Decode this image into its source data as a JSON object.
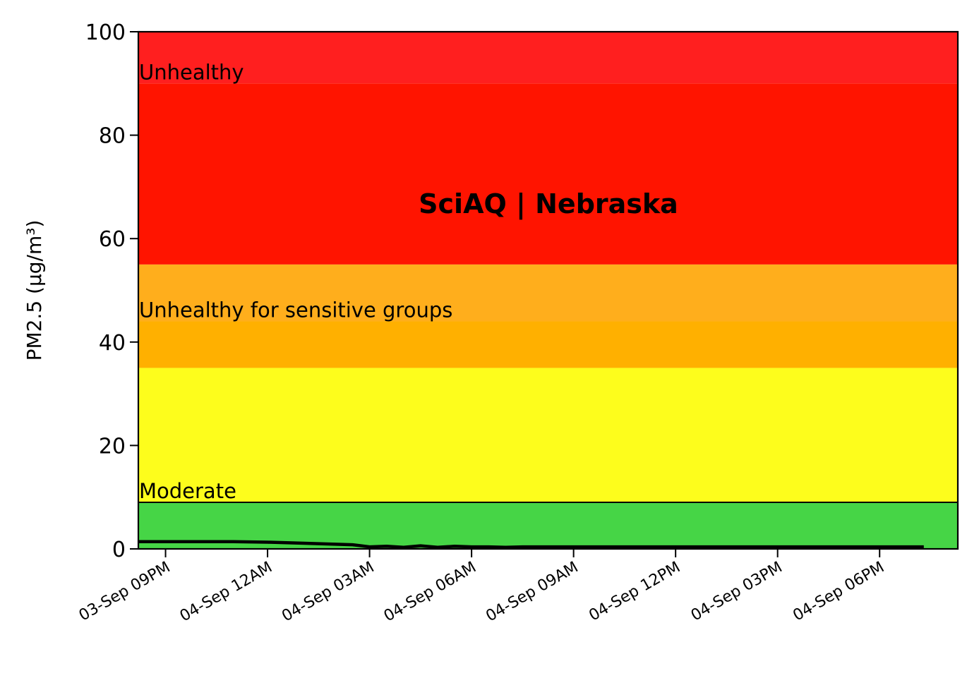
{
  "chart_data": {
    "type": "line",
    "title": "SciAQ | Nebraska",
    "ylabel": "PM2.5 (µg/m³)",
    "xlabel": "",
    "ylim": [
      0,
      100
    ],
    "xlim_hours": [
      -0.8,
      23.3
    ],
    "yticks": [
      {
        "value": 0,
        "label": "0"
      },
      {
        "value": 20,
        "label": "20"
      },
      {
        "value": 40,
        "label": "40"
      },
      {
        "value": 60,
        "label": "60"
      },
      {
        "value": 80,
        "label": "80"
      },
      {
        "value": 100,
        "label": "100"
      }
    ],
    "xticks": [
      {
        "hour": 0,
        "label": "03-Sep 09PM"
      },
      {
        "hour": 3,
        "label": "04-Sep 12AM"
      },
      {
        "hour": 6,
        "label": "04-Sep 03AM"
      },
      {
        "hour": 9,
        "label": "04-Sep 06AM"
      },
      {
        "hour": 12,
        "label": "04-Sep 09AM"
      },
      {
        "hour": 15,
        "label": "04-Sep 12PM"
      },
      {
        "hour": 18,
        "label": "04-Sep 03PM"
      },
      {
        "hour": 21,
        "label": "04-Sep 06PM"
      }
    ],
    "bands": [
      {
        "from": 0,
        "to": 9,
        "color": "#46d546",
        "label": "Moderate"
      },
      {
        "from": 9,
        "to": 35,
        "color": "#fdfd1c",
        "label": ""
      },
      {
        "from": 35,
        "to": 44,
        "color": "#ffb000",
        "label": "Unhealthy for sensitive groups"
      },
      {
        "from": 44,
        "to": 55,
        "color": "#ffae1c",
        "label": ""
      },
      {
        "from": 55,
        "to": 90,
        "color": "#ff1400",
        "label": "Unhealthy"
      },
      {
        "from": 90,
        "to": 100,
        "color": "#ff1f1f",
        "label": ""
      }
    ],
    "threshold_line": 9,
    "series": [
      {
        "name": "",
        "color": "#000000",
        "points": [
          [
            -0.8,
            1.4
          ],
          [
            0.0,
            1.4
          ],
          [
            1.0,
            1.4
          ],
          [
            2.0,
            1.4
          ],
          [
            3.0,
            1.3
          ],
          [
            4.0,
            1.1
          ],
          [
            5.0,
            0.9
          ],
          [
            5.5,
            0.8
          ],
          [
            6.0,
            0.4
          ],
          [
            6.5,
            0.5
          ],
          [
            7.0,
            0.3
          ],
          [
            7.5,
            0.6
          ],
          [
            8.0,
            0.3
          ],
          [
            8.5,
            0.5
          ],
          [
            9.0,
            0.4
          ],
          [
            9.5,
            0.4
          ],
          [
            10.0,
            0.3
          ],
          [
            10.5,
            0.4
          ],
          [
            12.0,
            0.4
          ],
          [
            15.0,
            0.4
          ],
          [
            18.0,
            0.4
          ],
          [
            21.0,
            0.4
          ],
          [
            22.3,
            0.4
          ]
        ]
      }
    ]
  }
}
